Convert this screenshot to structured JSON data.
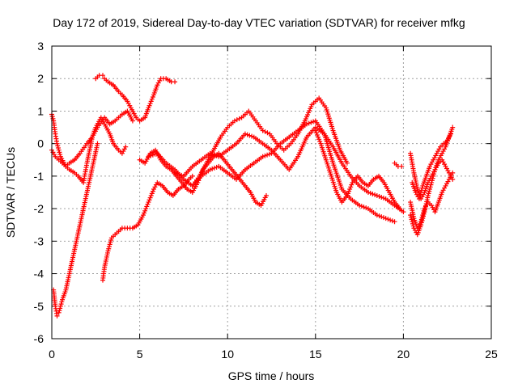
{
  "chart_data": {
    "type": "scatter",
    "title": "Day 172 of 2019, Sidereal Day-to-day VTEC variation (SDTVAR) for receiver mfkg",
    "xlabel": "GPS time / hours",
    "ylabel": "SDTVAR / TECUs",
    "xlim": [
      0,
      25
    ],
    "ylim": [
      -6,
      3
    ],
    "xticks": [
      "0",
      "5",
      "10",
      "15",
      "20",
      "25"
    ],
    "yticks": [
      "-6",
      "-5",
      "-4",
      "-3",
      "-2",
      "-1",
      "0",
      "1",
      "2",
      "3"
    ],
    "grid": true,
    "marker_color": "#ff0000",
    "marker": "plus",
    "series": [
      {
        "x": [
          0.0,
          0.1,
          0.2,
          0.3,
          0.5,
          0.8,
          1.0,
          1.3,
          1.5,
          1.8,
          2.0,
          2.3,
          2.5,
          2.8,
          3.0,
          3.3,
          3.5,
          3.8,
          4.0,
          4.2
        ],
        "y": [
          0.9,
          0.7,
          0.3,
          0.0,
          -0.4,
          -0.7,
          -0.8,
          -0.9,
          -1.0,
          -1.2,
          -0.6,
          0.2,
          0.5,
          0.8,
          0.6,
          0.3,
          0.0,
          -0.2,
          -0.3,
          -0.1
        ]
      },
      {
        "x": [
          0.1,
          0.2,
          0.3,
          0.4,
          0.5,
          0.6,
          0.8,
          1.0,
          1.2,
          1.4,
          1.6,
          1.8,
          2.0,
          2.2,
          2.4,
          2.6
        ],
        "y": [
          -4.5,
          -5.0,
          -5.3,
          -5.2,
          -5.0,
          -4.8,
          -4.5,
          -4.0,
          -3.5,
          -3.0,
          -2.5,
          -2.0,
          -1.5,
          -1.0,
          -0.5,
          0.0
        ]
      },
      {
        "x": [
          2.5,
          2.7,
          2.9,
          3.0,
          3.2,
          3.5,
          3.8,
          4.0,
          4.3,
          4.5,
          4.8,
          5.0,
          5.3,
          5.5,
          5.8,
          6.0,
          6.2,
          6.5,
          6.8,
          7.0
        ],
        "y": [
          2.0,
          2.1,
          2.1,
          2.0,
          1.9,
          1.8,
          1.6,
          1.5,
          1.3,
          1.1,
          0.8,
          0.7,
          0.8,
          1.1,
          1.5,
          1.8,
          2.0,
          2.0,
          1.9,
          1.9
        ]
      },
      {
        "x": [
          0.0,
          0.2,
          0.4,
          0.6,
          0.8,
          1.0,
          1.3,
          1.6,
          2.0,
          2.3,
          2.6,
          3.0,
          3.3,
          3.6,
          4.0,
          4.3,
          4.6
        ],
        "y": [
          -0.2,
          -0.4,
          -0.5,
          -0.6,
          -0.7,
          -0.6,
          -0.5,
          -0.3,
          0.0,
          0.2,
          0.5,
          0.8,
          0.6,
          0.7,
          0.9,
          1.0,
          0.7
        ]
      },
      {
        "x": [
          2.9,
          3.0,
          3.2,
          3.4,
          3.6,
          3.8,
          4.0,
          4.3,
          4.6,
          4.9,
          5.2,
          5.5,
          5.8,
          6.0,
          6.3,
          6.6,
          6.9,
          7.2,
          7.5,
          7.8,
          8.0
        ],
        "y": [
          -4.2,
          -3.8,
          -3.3,
          -2.9,
          -2.8,
          -2.7,
          -2.6,
          -2.6,
          -2.6,
          -2.5,
          -2.2,
          -1.8,
          -1.4,
          -1.2,
          -1.3,
          -1.5,
          -1.6,
          -1.4,
          -1.3,
          -1.1,
          -1.0
        ]
      },
      {
        "x": [
          5.0,
          5.3,
          5.6,
          5.9,
          6.2,
          6.5,
          6.8,
          7.1,
          7.4,
          7.7,
          8.0,
          8.3,
          8.6,
          8.9,
          9.2,
          9.5,
          9.8,
          10.1,
          10.4,
          10.7,
          11.0,
          11.3,
          11.6,
          11.9,
          12.2
        ],
        "y": [
          -0.5,
          -0.6,
          -0.3,
          -0.2,
          -0.5,
          -0.7,
          -0.8,
          -1.0,
          -1.2,
          -1.4,
          -1.5,
          -1.2,
          -0.8,
          -0.6,
          -0.4,
          -0.3,
          -0.5,
          -0.7,
          -0.9,
          -1.1,
          -1.3,
          -1.5,
          -1.8,
          -1.9,
          -1.6
        ]
      },
      {
        "x": [
          8.0,
          8.4,
          8.8,
          9.2,
          9.6,
          10.0,
          10.4,
          10.8,
          11.2,
          11.6,
          12.0,
          12.4,
          12.8,
          13.2,
          13.6,
          14.0,
          14.4,
          14.8,
          15.2,
          15.6,
          16.0,
          16.4,
          16.8
        ],
        "y": [
          -1.3,
          -1.0,
          -0.6,
          -0.2,
          0.2,
          0.5,
          0.7,
          0.8,
          1.0,
          0.7,
          0.4,
          0.3,
          0.0,
          -0.2,
          0.0,
          0.3,
          0.7,
          1.2,
          1.4,
          1.1,
          0.4,
          -0.2,
          -0.6
        ]
      },
      {
        "x": [
          7.0,
          7.5,
          8.0,
          8.5,
          9.0,
          9.5,
          10.0,
          10.5,
          11.0,
          11.5,
          12.0,
          12.5,
          13.0,
          13.5,
          14.0,
          14.5,
          15.0,
          15.5,
          16.0,
          16.5,
          17.0,
          17.5,
          18.0,
          18.5,
          19.0,
          19.5,
          20.0
        ],
        "y": [
          -0.9,
          -1.0,
          -0.7,
          -0.5,
          -0.3,
          -0.4,
          -0.2,
          0.0,
          0.3,
          0.2,
          0.0,
          -0.2,
          -0.5,
          -0.8,
          -0.4,
          0.2,
          0.5,
          0.3,
          -0.1,
          -0.6,
          -1.0,
          -1.3,
          -1.5,
          -1.6,
          -1.7,
          -1.9,
          -2.1
        ]
      },
      {
        "x": [
          5.5,
          6.0,
          6.5,
          7.0,
          7.5,
          8.0,
          8.5,
          9.0,
          9.5,
          10.0,
          10.5,
          11.0,
          11.5,
          12.0,
          12.5,
          13.0,
          13.5,
          14.0,
          14.5,
          15.0,
          15.5,
          16.0,
          16.5,
          17.0,
          17.5,
          18.0,
          18.5,
          19.0,
          19.5
        ],
        "y": [
          -0.4,
          -0.3,
          -0.6,
          -0.8,
          -1.1,
          -1.3,
          -1.0,
          -0.8,
          -0.7,
          -0.9,
          -1.1,
          -0.8,
          -0.6,
          -0.4,
          -0.3,
          0.0,
          0.2,
          0.4,
          0.6,
          0.7,
          0.3,
          -0.6,
          -1.4,
          -1.7,
          -1.9,
          -2.0,
          -2.2,
          -2.3,
          -2.4
        ]
      },
      {
        "x": [
          15.0,
          15.3,
          15.6,
          15.9,
          16.2,
          16.5,
          16.8,
          17.1,
          17.4,
          17.7,
          18.0,
          18.3,
          18.6,
          18.9,
          19.2,
          19.5,
          19.8
        ],
        "y": [
          0.4,
          0.0,
          -0.5,
          -1.0,
          -1.5,
          -1.8,
          -1.6,
          -1.2,
          -1.0,
          -1.2,
          -1.3,
          -1.1,
          -1.0,
          -1.2,
          -1.5,
          -1.8,
          -2.0
        ]
      },
      {
        "x": [
          19.5,
          19.7,
          19.9
        ],
        "y": [
          -0.6,
          -0.7,
          -0.7
        ]
      },
      {
        "x": [
          20.4,
          20.6,
          20.8,
          21.0,
          21.2,
          21.4,
          21.6,
          21.8,
          22.0,
          22.2,
          22.4,
          22.6,
          22.8
        ],
        "y": [
          -1.8,
          -2.3,
          -2.6,
          -2.4,
          -2.0,
          -1.8,
          -1.9,
          -2.1,
          -1.8,
          -1.5,
          -1.3,
          -1.1,
          -0.9
        ]
      },
      {
        "x": [
          20.4,
          20.6,
          20.8,
          21.0,
          21.2,
          21.4,
          21.6,
          21.8,
          22.0,
          22.2,
          22.4,
          22.6,
          22.8
        ],
        "y": [
          -0.3,
          -0.9,
          -1.4,
          -1.7,
          -1.5,
          -1.2,
          -1.0,
          -0.8,
          -0.6,
          -0.5,
          -0.7,
          -0.9,
          -1.1
        ]
      },
      {
        "x": [
          20.4,
          20.6,
          20.8,
          21.0,
          21.2,
          21.4,
          21.6,
          21.8,
          22.0,
          22.2,
          22.4,
          22.6,
          22.8
        ],
        "y": [
          -2.2,
          -2.6,
          -2.8,
          -2.5,
          -2.1,
          -1.6,
          -1.2,
          -0.8,
          -0.5,
          -0.3,
          -0.1,
          0.2,
          0.5
        ]
      },
      {
        "x": [
          20.5,
          20.7,
          20.9,
          21.1,
          21.3,
          21.5,
          21.7,
          21.9,
          22.1,
          22.3,
          22.5,
          22.7
        ],
        "y": [
          -1.2,
          -1.5,
          -1.7,
          -1.3,
          -1.0,
          -0.7,
          -0.5,
          -0.3,
          -0.1,
          0.0,
          0.1,
          0.3
        ]
      }
    ]
  }
}
